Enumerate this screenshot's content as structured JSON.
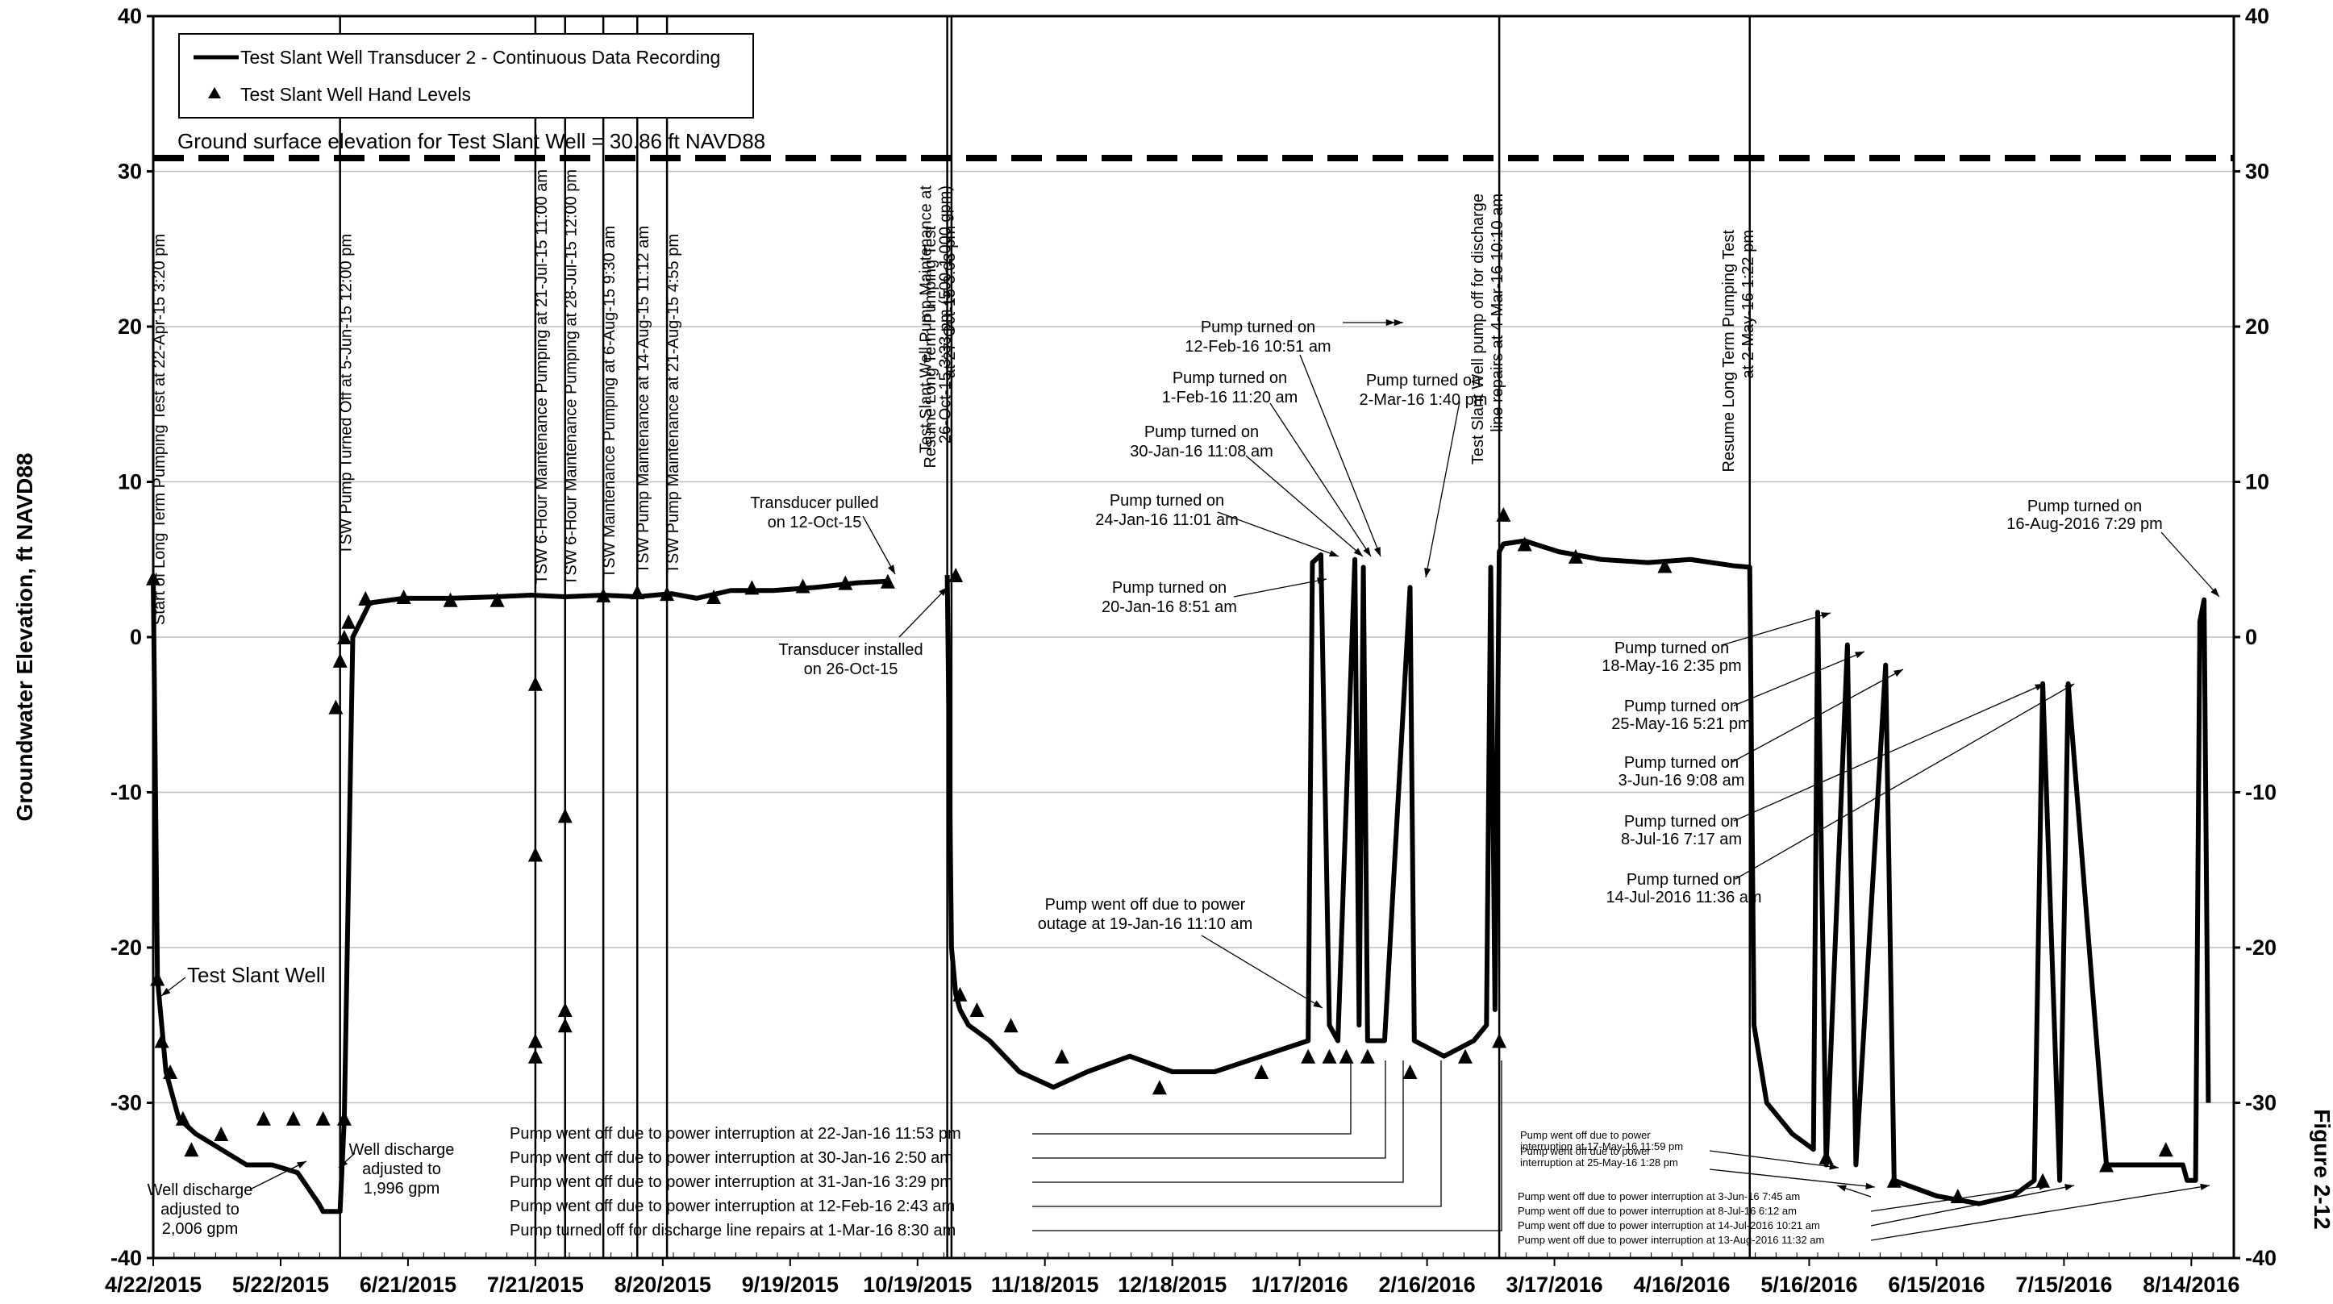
{
  "chart_data": {
    "type": "line",
    "title": "",
    "ylabel": "Groundwater Elevation, ft NAVD88",
    "figure_label": "Figure 2-12",
    "ylim": [
      -40,
      40
    ],
    "yticks": [
      -40,
      -30,
      -20,
      -10,
      0,
      10,
      20,
      30,
      40
    ],
    "xlim": [
      "2015-04-22",
      "2016-08-24"
    ],
    "xticks": [
      "2015-04-22",
      "2015-05-22",
      "2015-06-21",
      "2015-07-21",
      "2015-08-20",
      "2015-09-19",
      "2015-10-19",
      "2015-11-18",
      "2015-12-18",
      "2016-01-17",
      "2016-02-16",
      "2016-03-17",
      "2016-04-16",
      "2016-05-16",
      "2016-06-15",
      "2016-07-15",
      "2016-08-14"
    ],
    "xtick_labels": [
      "4/22/2015",
      "5/22/2015",
      "6/21/2015",
      "7/21/2015",
      "8/20/2015",
      "9/19/2015",
      "10/19/2015",
      "11/18/2015",
      "12/18/2015",
      "1/17/2016",
      "2/16/2016",
      "3/17/2016",
      "4/16/2016",
      "5/16/2016",
      "6/15/2016",
      "7/15/2016",
      "8/14/2016"
    ],
    "grid": true,
    "legend": {
      "placement": "top-left",
      "entries": [
        {
          "label": "Test Slant Well Transducer 2 - Continuous Data Recording",
          "marker": "line"
        },
        {
          "label": "Test Slant Well Hand Levels",
          "marker": "triangle"
        }
      ]
    },
    "ground_surface": {
      "value": 30.86,
      "label": "Ground surface elevation for Test Slant Well = 30.86 ft NAVD88"
    },
    "series": [
      {
        "name": "Test Slant Well Transducer 2 - Continuous Data Recording",
        "x": [
          "2015-04-22",
          "2015-04-23",
          "2015-04-25",
          "2015-04-28",
          "2015-05-02",
          "2015-05-08",
          "2015-05-14",
          "2015-05-20",
          "2015-05-26",
          "2015-05-31",
          "2015-06-01",
          "2015-06-05",
          "2015-06-06",
          "2015-06-08",
          "2015-06-12",
          "2015-06-20",
          "2015-07-01",
          "2015-07-12",
          "2015-07-20",
          "2015-07-28",
          "2015-08-06",
          "2015-08-14",
          "2015-08-22",
          "2015-08-28",
          "2015-09-05",
          "2015-09-15",
          "2015-09-25",
          "2015-10-05",
          "2015-10-12",
          null,
          "2015-10-26",
          "2015-10-27",
          "2015-10-28",
          "2015-10-29",
          "2015-10-31",
          "2015-11-05",
          "2015-11-12",
          "2015-11-20",
          "2015-11-28",
          "2015-12-08",
          "2015-12-18",
          "2015-12-28",
          "2016-01-08",
          "2016-01-19",
          "2016-01-20",
          "2016-01-22",
          "2016-01-24",
          "2016-01-26",
          "2016-01-30",
          "2016-01-31",
          "2016-02-01",
          "2016-02-02",
          "2016-02-06",
          "2016-02-12",
          "2016-02-13",
          "2016-02-20",
          "2016-02-27",
          "2016-03-01",
          "2016-03-02",
          "2016-03-03",
          "2016-03-04",
          "2016-03-05",
          "2016-03-10",
          "2016-03-18",
          "2016-03-28",
          "2016-04-08",
          "2016-04-18",
          "2016-04-28",
          "2016-05-02",
          "2016-05-03",
          "2016-05-06",
          "2016-05-12",
          "2016-05-17",
          "2016-05-18",
          "2016-05-20",
          "2016-05-25",
          "2016-05-27",
          "2016-06-03",
          "2016-06-05",
          "2016-06-15",
          "2016-06-25",
          "2016-07-03",
          "2016-07-08",
          "2016-07-10",
          "2016-07-14",
          "2016-07-16",
          "2016-07-25",
          "2016-08-05",
          "2016-08-12",
          "2016-08-13",
          "2016-08-15",
          "2016-08-16",
          "2016-08-17",
          "2016-08-18"
        ],
        "y": [
          4,
          -22,
          -28,
          -31,
          -32,
          -33,
          -34,
          -34,
          -34.5,
          -36.5,
          -37,
          -37,
          -31,
          0,
          2.2,
          2.5,
          2.5,
          2.6,
          2.7,
          2.6,
          2.7,
          2.6,
          2.8,
          2.5,
          3,
          3,
          3.2,
          3.5,
          3.6,
          null,
          4,
          -20,
          -23,
          -24,
          -25,
          -26,
          -28,
          -29,
          -28,
          -27,
          -28,
          -28,
          -27,
          -26,
          4.8,
          5.3,
          -25,
          -26,
          5,
          -25,
          4.5,
          -26,
          -26,
          3.2,
          -26,
          -27,
          -26,
          -25,
          4.5,
          -24,
          5.5,
          6,
          6.2,
          5.5,
          5,
          4.8,
          5,
          4.6,
          4.5,
          -25,
          -30,
          -32,
          -33,
          1.6,
          -34,
          -0.5,
          -34,
          -1.8,
          -35,
          -36,
          -36.5,
          -36,
          -35,
          -3,
          -35,
          -3,
          -34,
          -34,
          -34,
          -35,
          -35,
          1,
          2.4,
          -30
        ]
      },
      {
        "name": "Test Slant Well Hand Levels",
        "type": "scatter",
        "x": [
          "2015-04-22",
          "2015-04-23",
          "2015-04-24",
          "2015-04-26",
          "2015-04-29",
          "2015-05-01",
          "2015-05-08",
          "2015-05-18",
          "2015-05-25",
          "2015-06-01",
          "2015-06-04",
          "2015-06-05",
          "2015-06-06",
          "2015-06-06",
          "2015-06-07",
          "2015-06-11",
          "2015-06-20",
          "2015-07-01",
          "2015-07-12",
          "2015-07-21",
          "2015-07-21",
          "2015-07-21",
          "2015-07-21",
          "2015-07-28",
          "2015-07-28",
          "2015-07-28",
          "2015-08-06",
          "2015-08-14",
          "2015-08-21",
          "2015-09-01",
          "2015-09-10",
          "2015-09-22",
          "2015-10-02",
          "2015-10-12",
          "2015-10-28",
          "2015-10-29",
          "2015-11-02",
          "2015-11-10",
          "2015-11-22",
          "2015-12-15",
          "2016-01-08",
          "2016-01-19",
          "2016-01-24",
          "2016-01-28",
          "2016-02-02",
          "2016-02-12",
          "2016-02-25",
          "2016-03-04",
          "2016-03-05",
          "2016-03-10",
          "2016-03-22",
          "2016-04-12",
          "2016-05-20",
          "2016-06-05",
          "2016-06-20",
          "2016-07-10",
          "2016-07-25",
          "2016-08-08"
        ],
        "y": [
          3.8,
          -22,
          -26,
          -28,
          -31,
          -33,
          -32,
          -31,
          -31,
          -31,
          -4.5,
          -1.5,
          0,
          -31,
          1,
          2.5,
          2.6,
          2.4,
          2.4,
          -3,
          -14,
          -26,
          -27,
          -24,
          -25,
          -11.5,
          2.7,
          2.9,
          2.8,
          2.6,
          3.2,
          3.3,
          3.5,
          3.6,
          4,
          -23,
          -24,
          -25,
          -27,
          -29,
          -28,
          -27,
          -27,
          -27,
          -27,
          -28,
          -27,
          -26,
          7.9,
          6,
          5.2,
          4.6,
          -33.5,
          -35,
          -36,
          -35,
          -34,
          -33
        ]
      }
    ],
    "annotations": [
      {
        "date": "2015-04-22",
        "text": "Start of Long Term Pumping Test at 22-Apr-15 3:20 pm"
      },
      {
        "date": "2015-06-05",
        "text": "TSW Pump Turned Off at 5-Jun-15 12:00 pm"
      },
      {
        "date": "2015-07-21",
        "text": "TSW 6-Hour Maintenance Pumping at 21-Jul-15 11:00 am"
      },
      {
        "date": "2015-07-28",
        "text": "TSW 6-Hour Maintenance Pumping at 28-Jul-15 12:00 pm"
      },
      {
        "date": "2015-08-06",
        "text": "TSW Maintenance Pumping at 6-Aug-15 9:30 am"
      },
      {
        "date": "2015-08-14",
        "text": "TSW Pump Maintenance at 14-Aug-15 11:12 am"
      },
      {
        "date": "2015-08-21",
        "text": "TSW Pump Maintenance at 21-Aug-15 4:55 pm"
      },
      {
        "date": "2015-10-26",
        "text1": "Test Slant Well Pump Maintenance at",
        "text2": "26-Oct-15 3:33 pm (500-1,000 gpm)"
      },
      {
        "date": "2015-10-27",
        "text1": "Resume Long Term Pumping Test",
        "text2": "at 27-Oct-15 3:03 pm"
      },
      {
        "date": "2016-03-04",
        "text1": "Test Slant Well pump off for discharge",
        "text2": "line repairs at 4-Mar-16 10:10 am"
      },
      {
        "date": "2016-05-02",
        "text1": "Resume Long Term Pumping Test",
        "text2": "at 2-May-16 1:22 pm"
      },
      {
        "text1": "Transducer pulled",
        "text2": "on 12-Oct-15"
      },
      {
        "text1": "Transducer installed",
        "text2": "on 26-Oct-15"
      },
      {
        "text": "Test Slant Well"
      },
      {
        "text1": "Well discharge",
        "text2": "adjusted to",
        "text3": "2,006 gpm"
      },
      {
        "text1": "Well discharge",
        "text2": "adjusted to",
        "text3": "1,996 gpm"
      },
      {
        "text1": "Pump turned on",
        "text2": "12-Feb-16 10:51 am"
      },
      {
        "text1": "Pump turned on",
        "text2": "1-Feb-16 11:20 am"
      },
      {
        "text1": "Pump turned on",
        "text2": "30-Jan-16 11:08 am"
      },
      {
        "text1": "Pump turned on",
        "text2": "24-Jan-16 11:01 am"
      },
      {
        "text1": "Pump turned on",
        "text2": "20-Jan-16 8:51 am"
      },
      {
        "text1": "Pump turned on",
        "text2": "2-Mar-16 1:40 pm"
      },
      {
        "text1": "Pump went off due to power",
        "text2": "outage at 19-Jan-16 11:10 am"
      },
      {
        "text1": "Pump turned on",
        "text2": "16-Aug-2016 7:29 pm"
      },
      {
        "text1": "Pump turned on",
        "text2": "18-May-16 2:35 pm"
      },
      {
        "text1": "Pump turned on",
        "text2": "25-May-16 5:21 pm"
      },
      {
        "text1": "Pump turned on",
        "text2": "3-Jun-16 9:08 am"
      },
      {
        "text1": "Pump turned on",
        "text2": "8-Jul-16 7:17 am"
      },
      {
        "text1": "Pump turned on",
        "text2": "14-Jul-2016 11:36 am"
      },
      {
        "text": "Pump went off due to power interruption at 22-Jan-16 11:53 pm"
      },
      {
        "text": "Pump went off due to power interruption at 30-Jan-16 2:50 am"
      },
      {
        "text": "Pump went off due to power interruption at 31-Jan-16 3:29 pm"
      },
      {
        "text": "Pump went off due to power interruption at 12-Feb-16 2:43 am"
      },
      {
        "text": "Pump turned off for discharge line  repairs  at 1-Mar-16 8:30 am"
      },
      {
        "text1": "Pump went off due to power",
        "text2": "interruption at 17-May-16 11:59 pm"
      },
      {
        "text1": "Pump went off due to power",
        "text2": "interruption at 25-May-16 1:28 pm"
      },
      {
        "text": "Pump went off due to power interruption at 3-Jun-16 7:45 am"
      },
      {
        "text": "Pump went off due to power interruption at 8-Jul-16 6:12 am"
      },
      {
        "text": "Pump went off due to power interruption at 14-Jul-2016 10:21 am"
      },
      {
        "text": "Pump went off due to power interruption at 13-Aug-2016 11:32 am"
      }
    ]
  }
}
